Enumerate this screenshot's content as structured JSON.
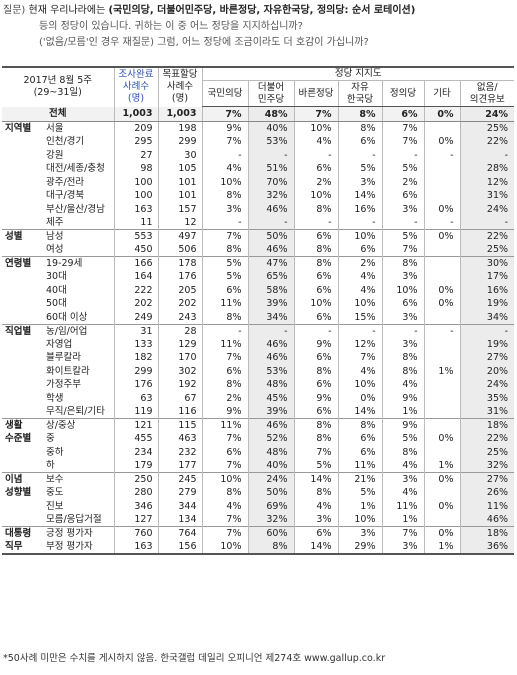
{
  "question": {
    "label": "질문)",
    "prefix": "현재 우리나라에는",
    "parties_bold": "(국민의당, 더불어민주당, 바른정당, 자유한국당, 정의당: 순서 로테이션)",
    "line2": "등의 정당이 있습니다. 귀하는 이 중 어느 정당을 지지하십니까?",
    "line3": "('없음/모름'인 경우 재질문) 그럼, 어느 정당에 조금이라도 더 호감이 가십니까?"
  },
  "header": {
    "survey_title": "2017년 8월 5주",
    "survey_dates": "(29~31일)",
    "col_sample_a": "조사완료",
    "col_sample_b": "사례수",
    "col_sample_c": "(명)",
    "col_weight_a": "목표할당",
    "col_weight_b": "사례수",
    "col_weight_c": "(명)",
    "party_group": "정당 지지도",
    "parties": [
      "국민의당",
      "더불어\n민주당",
      "바른정당",
      "자유\n한국당",
      "정의당",
      "기타",
      "없음/\n의견유보"
    ]
  },
  "total": {
    "label": "전체",
    "n1": "1,003",
    "n2": "1,003",
    "v": [
      "7%",
      "48%",
      "7%",
      "8%",
      "6%",
      "0%",
      "24%"
    ]
  },
  "groups": [
    {
      "cat": "지역별",
      "rows": [
        {
          "label": "서울",
          "n1": "209",
          "n2": "198",
          "v": [
            "9%",
            "40%",
            "10%",
            "8%",
            "7%",
            "",
            "25%"
          ]
        },
        {
          "label": "인천/경기",
          "n1": "295",
          "n2": "299",
          "v": [
            "7%",
            "53%",
            "4%",
            "6%",
            "7%",
            "0%",
            "22%"
          ]
        },
        {
          "label": "강원",
          "n1": "27",
          "n2": "30",
          "v": [
            "-",
            "-",
            "-",
            "-",
            "-",
            "-",
            "-"
          ]
        },
        {
          "label": "대전/세종/충청",
          "n1": "98",
          "n2": "105",
          "v": [
            "4%",
            "51%",
            "6%",
            "5%",
            "5%",
            "",
            "28%"
          ]
        },
        {
          "label": "광주/전라",
          "n1": "100",
          "n2": "101",
          "v": [
            "10%",
            "70%",
            "2%",
            "3%",
            "2%",
            "",
            "12%"
          ]
        },
        {
          "label": "대구/경북",
          "n1": "100",
          "n2": "101",
          "v": [
            "8%",
            "32%",
            "10%",
            "14%",
            "6%",
            "",
            "31%"
          ]
        },
        {
          "label": "부산/울산/경남",
          "n1": "163",
          "n2": "157",
          "v": [
            "3%",
            "46%",
            "8%",
            "16%",
            "3%",
            "0%",
            "24%"
          ]
        },
        {
          "label": "제주",
          "n1": "11",
          "n2": "12",
          "v": [
            "-",
            "-",
            "-",
            "-",
            "-",
            "-",
            "-"
          ]
        }
      ]
    },
    {
      "cat": "성별",
      "rows": [
        {
          "label": "남성",
          "n1": "553",
          "n2": "497",
          "v": [
            "7%",
            "50%",
            "6%",
            "10%",
            "5%",
            "0%",
            "22%"
          ]
        },
        {
          "label": "여성",
          "n1": "450",
          "n2": "506",
          "v": [
            "8%",
            "46%",
            "8%",
            "6%",
            "7%",
            "",
            "25%"
          ]
        }
      ]
    },
    {
      "cat": "연령별",
      "rows": [
        {
          "label": "19-29세",
          "n1": "166",
          "n2": "178",
          "v": [
            "5%",
            "47%",
            "8%",
            "2%",
            "8%",
            "",
            "30%"
          ]
        },
        {
          "label": "30대",
          "n1": "164",
          "n2": "176",
          "v": [
            "5%",
            "65%",
            "6%",
            "4%",
            "3%",
            "",
            "17%"
          ]
        },
        {
          "label": "40대",
          "n1": "222",
          "n2": "205",
          "v": [
            "6%",
            "58%",
            "6%",
            "4%",
            "10%",
            "0%",
            "16%"
          ]
        },
        {
          "label": "50대",
          "n1": "202",
          "n2": "202",
          "v": [
            "11%",
            "39%",
            "10%",
            "10%",
            "6%",
            "0%",
            "19%"
          ]
        },
        {
          "label": "60대 이상",
          "n1": "249",
          "n2": "243",
          "v": [
            "8%",
            "34%",
            "6%",
            "15%",
            "3%",
            "",
            "34%"
          ]
        }
      ]
    },
    {
      "cat": "직업별",
      "rows": [
        {
          "label": "농/임/어업",
          "n1": "31",
          "n2": "28",
          "v": [
            "-",
            "-",
            "-",
            "-",
            "-",
            "-",
            "-"
          ]
        },
        {
          "label": "자영업",
          "n1": "133",
          "n2": "129",
          "v": [
            "11%",
            "46%",
            "9%",
            "12%",
            "3%",
            "",
            "19%"
          ]
        },
        {
          "label": "블루칼라",
          "n1": "182",
          "n2": "170",
          "v": [
            "7%",
            "46%",
            "6%",
            "7%",
            "8%",
            "",
            "27%"
          ]
        },
        {
          "label": "화이트칼라",
          "n1": "299",
          "n2": "302",
          "v": [
            "6%",
            "53%",
            "8%",
            "4%",
            "8%",
            "1%",
            "20%"
          ]
        },
        {
          "label": "가정주부",
          "n1": "176",
          "n2": "192",
          "v": [
            "8%",
            "48%",
            "6%",
            "10%",
            "4%",
            "",
            "24%"
          ]
        },
        {
          "label": "학생",
          "n1": "63",
          "n2": "67",
          "v": [
            "2%",
            "45%",
            "9%",
            "0%",
            "9%",
            "",
            "35%"
          ]
        },
        {
          "label": "무직/은퇴/기타",
          "n1": "119",
          "n2": "116",
          "v": [
            "9%",
            "39%",
            "6%",
            "14%",
            "1%",
            "",
            "31%"
          ]
        }
      ]
    },
    {
      "cat": "생활",
      "cat2": "수준별",
      "rows": [
        {
          "label": "상/중상",
          "n1": "121",
          "n2": "115",
          "v": [
            "11%",
            "46%",
            "8%",
            "8%",
            "9%",
            "",
            "18%"
          ]
        },
        {
          "label": "중",
          "n1": "455",
          "n2": "463",
          "v": [
            "7%",
            "52%",
            "8%",
            "6%",
            "5%",
            "0%",
            "22%"
          ]
        },
        {
          "label": "중하",
          "n1": "234",
          "n2": "232",
          "v": [
            "6%",
            "48%",
            "7%",
            "6%",
            "8%",
            "",
            "25%"
          ]
        },
        {
          "label": "하",
          "n1": "179",
          "n2": "177",
          "v": [
            "7%",
            "40%",
            "5%",
            "11%",
            "4%",
            "1%",
            "32%"
          ]
        }
      ]
    },
    {
      "cat": "이념",
      "cat2": "성향별",
      "rows": [
        {
          "label": "보수",
          "n1": "250",
          "n2": "245",
          "v": [
            "10%",
            "24%",
            "14%",
            "21%",
            "3%",
            "0%",
            "27%"
          ]
        },
        {
          "label": "중도",
          "n1": "280",
          "n2": "279",
          "v": [
            "8%",
            "50%",
            "8%",
            "5%",
            "4%",
            "",
            "26%"
          ]
        },
        {
          "label": "진보",
          "n1": "346",
          "n2": "344",
          "v": [
            "4%",
            "69%",
            "4%",
            "1%",
            "11%",
            "0%",
            "11%"
          ]
        },
        {
          "label": "모름/응답거절",
          "n1": "127",
          "n2": "134",
          "v": [
            "7%",
            "32%",
            "3%",
            "10%",
            "1%",
            "",
            "46%"
          ]
        }
      ]
    },
    {
      "cat": "대통령",
      "cat2": "직무",
      "rows": [
        {
          "label": "긍정 평가자",
          "n1": "760",
          "n2": "764",
          "v": [
            "7%",
            "60%",
            "6%",
            "3%",
            "7%",
            "0%",
            "18%"
          ]
        },
        {
          "label": "부정 평가자",
          "n1": "163",
          "n2": "156",
          "v": [
            "10%",
            "8%",
            "14%",
            "29%",
            "3%",
            "1%",
            "36%"
          ]
        }
      ]
    }
  ],
  "footnote": "*50사례 미만은 수치를 게시하지 않음. 한국갤럽 데일리 오피니언 제274호 www.gallup.co.kr"
}
